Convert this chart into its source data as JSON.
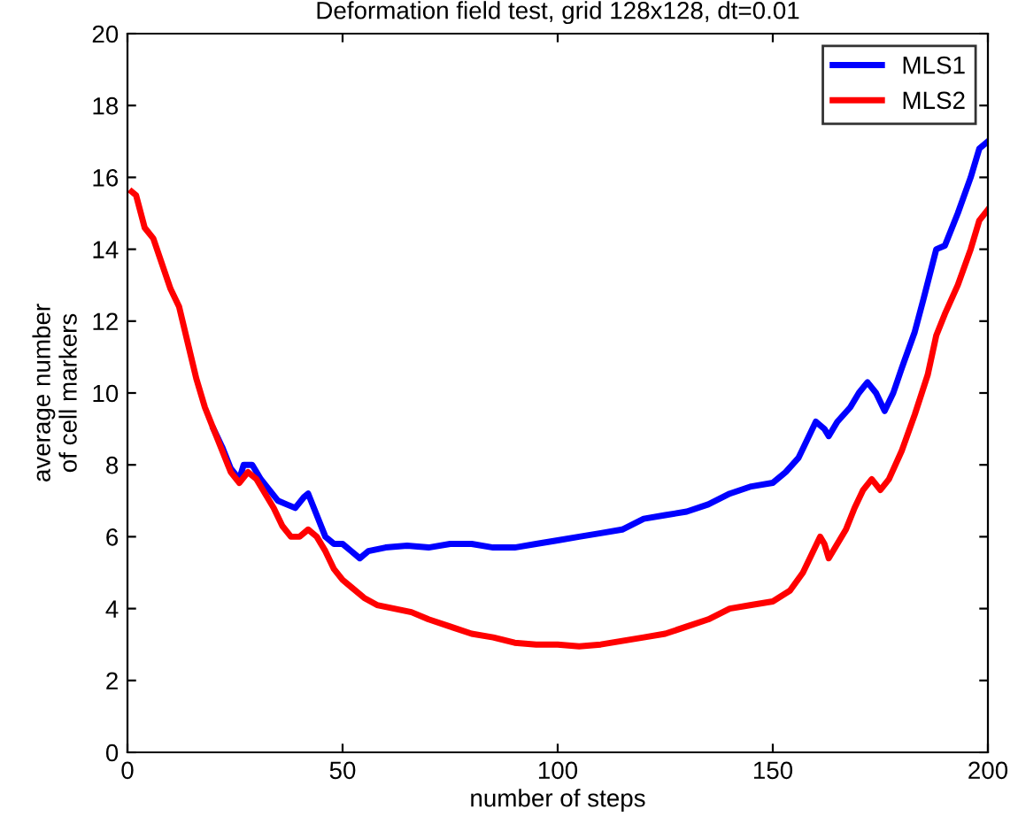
{
  "chart_data": {
    "type": "line",
    "title": "Deformation field test, grid 128x128, dt=0.01",
    "xlabel": "number of steps",
    "ylabel": "average number\nof cell markers",
    "xlim": [
      0,
      200
    ],
    "ylim": [
      0,
      20
    ],
    "xticks": [
      0,
      50,
      100,
      150,
      200
    ],
    "yticks": [
      0,
      2,
      4,
      6,
      8,
      10,
      12,
      14,
      16,
      18,
      20
    ],
    "grid": false,
    "legend": "top right",
    "marker": "none",
    "line_style": "solid",
    "series": [
      {
        "name": "MLS1",
        "color": "#0000ff",
        "x": [
          20,
          22,
          24,
          26,
          27,
          29,
          31,
          33,
          35,
          37,
          39,
          41,
          42,
          44,
          46,
          48,
          50,
          52,
          54,
          56,
          60,
          65,
          70,
          75,
          80,
          85,
          90,
          95,
          100,
          105,
          110,
          115,
          120,
          125,
          130,
          135,
          140,
          145,
          150,
          153,
          156,
          158,
          160,
          162,
          163,
          165,
          168,
          170,
          172,
          174,
          176,
          178,
          180,
          183,
          185,
          188,
          190,
          193,
          196,
          198,
          200
        ],
        "values": [
          9.0,
          8.5,
          7.9,
          7.6,
          8.0,
          8.0,
          7.6,
          7.3,
          7.0,
          6.9,
          6.8,
          7.1,
          7.2,
          6.6,
          6.0,
          5.8,
          5.8,
          5.6,
          5.4,
          5.6,
          5.7,
          5.75,
          5.7,
          5.8,
          5.8,
          5.7,
          5.7,
          5.8,
          5.9,
          6.0,
          6.1,
          6.2,
          6.5,
          6.6,
          6.7,
          6.9,
          7.2,
          7.4,
          7.5,
          7.8,
          8.2,
          8.7,
          9.2,
          9.0,
          8.8,
          9.2,
          9.6,
          10.0,
          10.3,
          10.0,
          9.5,
          10.0,
          10.7,
          11.7,
          12.6,
          14.0,
          14.1,
          15.0,
          16.0,
          16.8,
          17.0
        ]
      },
      {
        "name": "MLS2",
        "color": "#ff0000",
        "x": [
          1,
          2,
          4,
          6,
          8,
          10,
          12,
          14,
          16,
          18,
          20,
          22,
          24,
          26,
          28,
          30,
          32,
          34,
          36,
          38,
          40,
          42,
          44,
          46,
          48,
          50,
          52,
          55,
          58,
          62,
          66,
          70,
          75,
          80,
          85,
          90,
          95,
          100,
          105,
          110,
          115,
          120,
          125,
          130,
          135,
          140,
          145,
          150,
          154,
          157,
          159,
          161,
          162,
          163,
          165,
          167,
          169,
          171,
          173,
          175,
          177,
          180,
          183,
          186,
          188,
          190,
          193,
          196,
          198,
          200
        ],
        "values": [
          15.6,
          15.5,
          14.6,
          14.3,
          13.6,
          12.9,
          12.4,
          11.4,
          10.4,
          9.6,
          9.0,
          8.4,
          7.8,
          7.5,
          7.8,
          7.6,
          7.2,
          6.8,
          6.3,
          6.0,
          6.0,
          6.2,
          6.0,
          5.6,
          5.1,
          4.8,
          4.6,
          4.3,
          4.1,
          4.0,
          3.9,
          3.7,
          3.5,
          3.3,
          3.2,
          3.05,
          3.0,
          3.0,
          2.95,
          3.0,
          3.1,
          3.2,
          3.3,
          3.5,
          3.7,
          4.0,
          4.1,
          4.2,
          4.5,
          5.0,
          5.5,
          6.0,
          5.8,
          5.4,
          5.8,
          6.2,
          6.8,
          7.3,
          7.6,
          7.3,
          7.6,
          8.4,
          9.4,
          10.5,
          11.6,
          12.2,
          13.0,
          14.0,
          14.8,
          15.1
        ]
      }
    ]
  }
}
